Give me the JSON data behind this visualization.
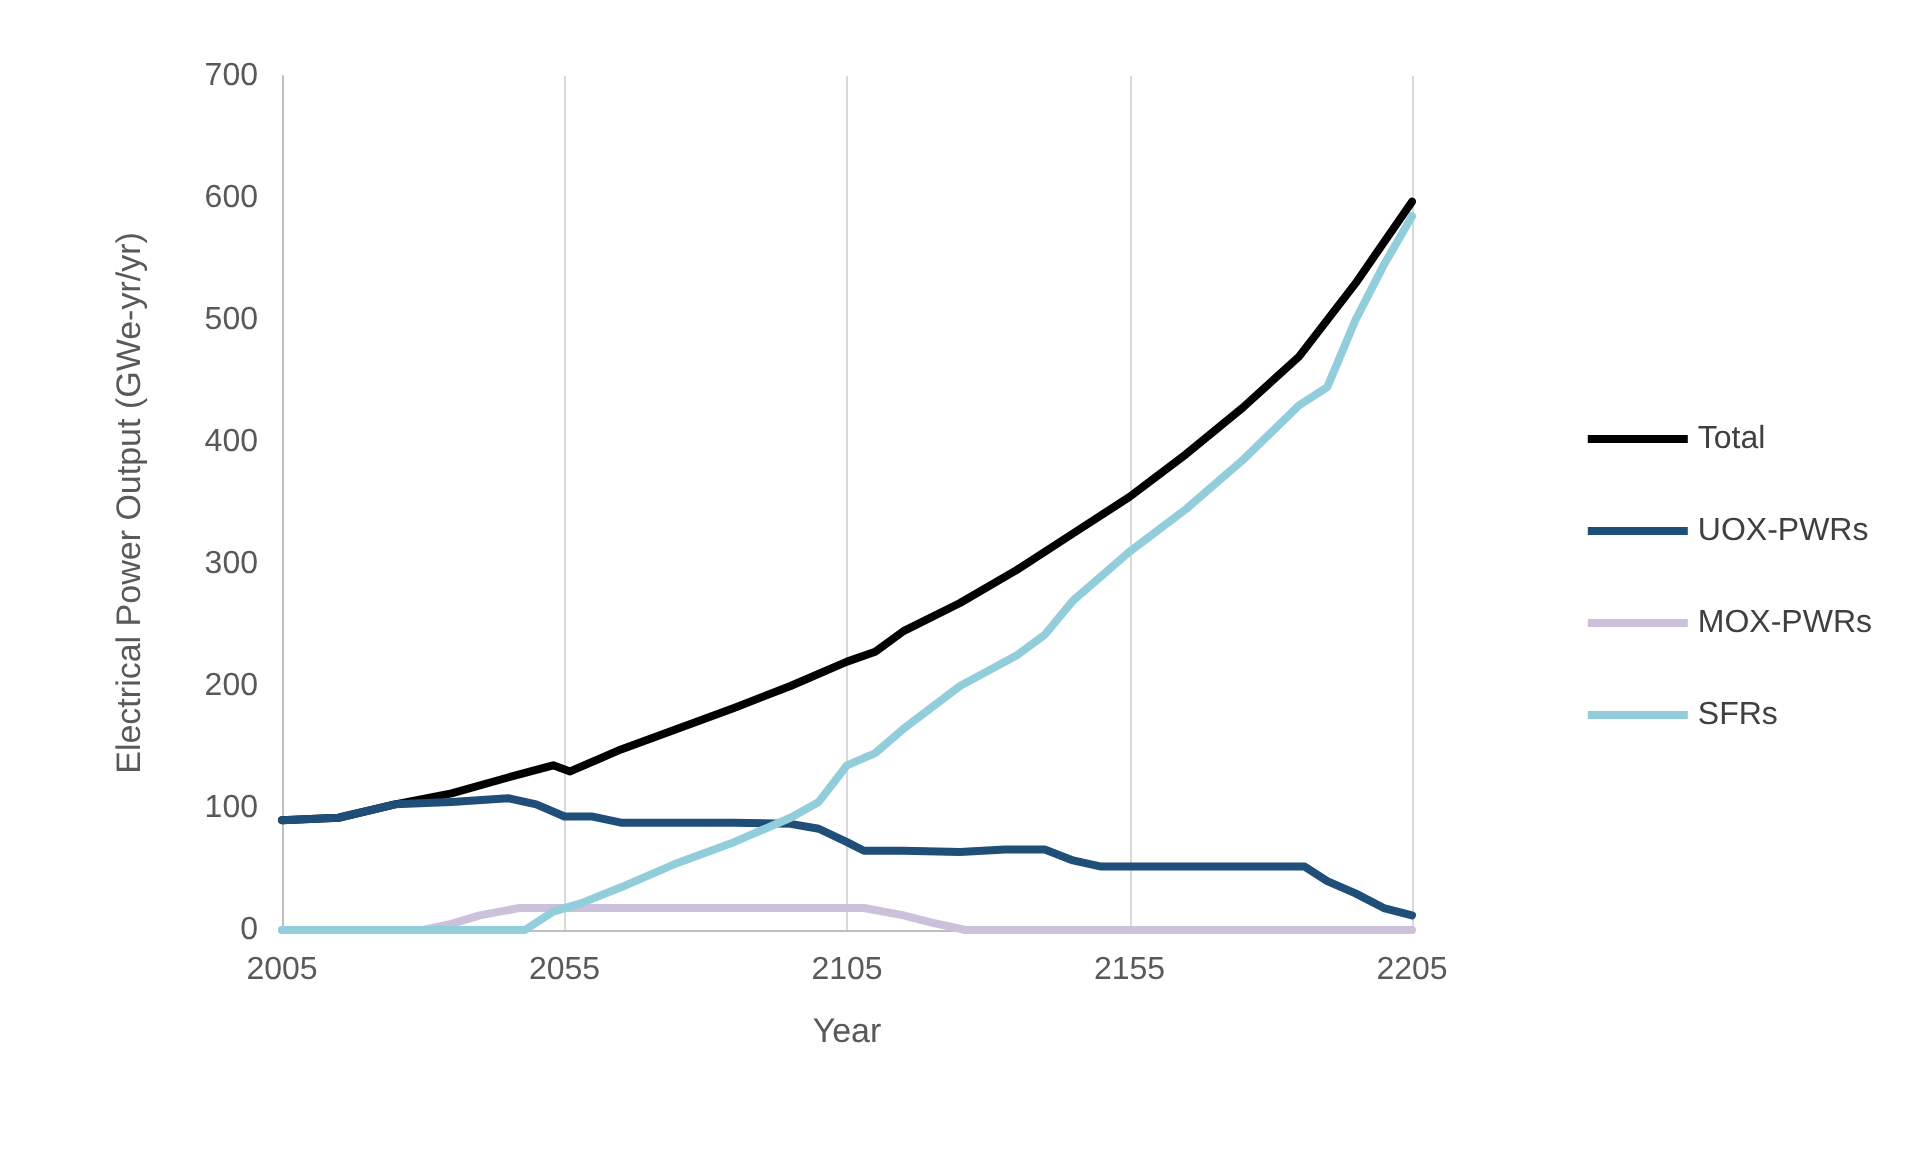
{
  "chart_data": {
    "type": "line",
    "xlabel": "Year",
    "ylabel": "Electrical Power Output (GWe-yr/yr)",
    "xlim": [
      2005,
      2205
    ],
    "xticks": [
      2005,
      2055,
      2105,
      2155,
      2205
    ],
    "ylim": [
      0,
      700
    ],
    "yticks": [
      0,
      100,
      200,
      300,
      400,
      500,
      600,
      700
    ],
    "grid": "x",
    "legend": "right",
    "marker": "none",
    "line_style": "solid",
    "series": [
      {
        "name": "Total",
        "color": "#000000",
        "x": [
          2005,
          2015,
          2025,
          2035,
          2045,
          2053,
          2056,
          2065,
          2075,
          2085,
          2095,
          2105,
          2110,
          2115,
          2125,
          2135,
          2145,
          2155,
          2165,
          2175,
          2185,
          2195,
          2205
        ],
        "values": [
          90,
          92,
          103,
          112,
          125,
          135,
          130,
          148,
          165,
          182,
          200,
          220,
          228,
          245,
          268,
          295,
          325,
          355,
          390,
          428,
          470,
          530,
          597
        ]
      },
      {
        "name": "UOX-PWRs",
        "color": "#1f4e79",
        "x": [
          2005,
          2015,
          2025,
          2035,
          2045,
          2050,
          2055,
          2060,
          2065,
          2075,
          2085,
          2095,
          2100,
          2105,
          2108,
          2115,
          2125,
          2133,
          2140,
          2145,
          2150,
          2160,
          2170,
          2180,
          2186,
          2190,
          2195,
          2200,
          2205
        ],
        "values": [
          90,
          92,
          103,
          105,
          108,
          103,
          93,
          93,
          88,
          88,
          88,
          87,
          83,
          72,
          65,
          65,
          64,
          66,
          66,
          57,
          52,
          52,
          52,
          52,
          52,
          40,
          30,
          18,
          12
        ]
      },
      {
        "name": "MOX-PWRs",
        "color": "#ccc0da",
        "x": [
          2005,
          2030,
          2035,
          2040,
          2047,
          2055,
          2070,
          2090,
          2108,
          2115,
          2120,
          2126,
          2205
        ],
        "values": [
          0,
          0,
          5,
          12,
          18,
          18,
          18,
          18,
          18,
          12,
          6,
          0,
          0
        ]
      },
      {
        "name": "SFRs",
        "color": "#92cddc",
        "x": [
          2005,
          2048,
          2053,
          2058,
          2065,
          2075,
          2085,
          2095,
          2100,
          2105,
          2110,
          2115,
          2125,
          2135,
          2140,
          2145,
          2155,
          2165,
          2175,
          2185,
          2190,
          2195,
          2200,
          2205
        ],
        "values": [
          0,
          0,
          15,
          22,
          35,
          55,
          72,
          92,
          105,
          135,
          145,
          165,
          200,
          225,
          242,
          270,
          310,
          345,
          385,
          430,
          445,
          500,
          545,
          585
        ]
      }
    ]
  }
}
